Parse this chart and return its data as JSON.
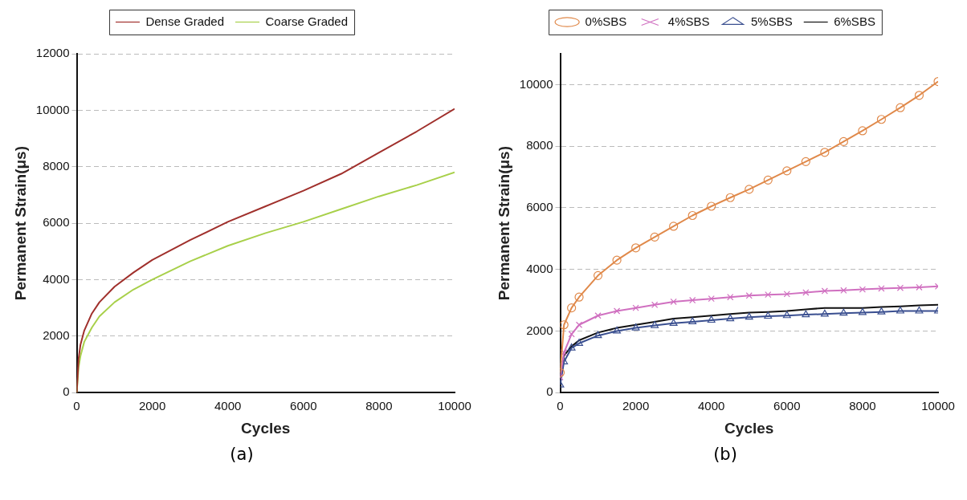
{
  "chart_data": [
    {
      "type": "line",
      "xlabel": "Cycles",
      "ylabel": "Permanent Strain(μs)",
      "xlim": [
        0,
        10000
      ],
      "xticks": [
        0,
        2000,
        4000,
        6000,
        8000,
        10000
      ],
      "ylim": [
        0,
        12000
      ],
      "yticks": [
        0,
        2000,
        4000,
        6000,
        8000,
        10000,
        12000
      ],
      "grid": "y",
      "legend": "top",
      "marker": "none",
      "line_style": "solid",
      "annotations": [
        "(a)"
      ],
      "x": [
        0,
        50,
        100,
        200,
        400,
        600,
        1000,
        1500,
        2000,
        3000,
        4000,
        5000,
        6000,
        7000,
        8000,
        9000,
        10000
      ],
      "series": [
        {
          "name": "Dense Graded",
          "color": "#a0302c",
          "values": [
            0,
            1200,
            1700,
            2200,
            2800,
            3200,
            3750,
            4250,
            4700,
            5400,
            6050,
            6600,
            7150,
            7750,
            8500,
            9250,
            10050
          ]
        },
        {
          "name": "Coarse Graded",
          "color": "#a8d04a",
          "values": [
            0,
            900,
            1300,
            1800,
            2300,
            2700,
            3200,
            3650,
            4000,
            4650,
            5200,
            5650,
            6050,
            6500,
            6950,
            7350,
            7800
          ]
        }
      ]
    },
    {
      "type": "line",
      "xlabel": "Cycles",
      "ylabel": "Permanent Strain(μs)",
      "xlim": [
        0,
        10000
      ],
      "xticks": [
        0,
        2000,
        4000,
        6000,
        8000,
        10000
      ],
      "ylim": [
        0,
        11000
      ],
      "yticks": [
        0,
        2000,
        4000,
        6000,
        8000,
        10000
      ],
      "grid": "y",
      "legend": "top",
      "line_style": "solid",
      "annotations": [
        "(b)"
      ],
      "x": [
        0,
        100,
        300,
        500,
        1000,
        1500,
        2000,
        2500,
        3000,
        3500,
        4000,
        4500,
        5000,
        5500,
        6000,
        6500,
        7000,
        7500,
        8000,
        8500,
        9000,
        9500,
        10000
      ],
      "series": [
        {
          "name": "0%SBS",
          "color": "#e0894a",
          "marker": "circle",
          "values": [
            650,
            2200,
            2750,
            3100,
            3800,
            4300,
            4700,
            5050,
            5400,
            5750,
            6050,
            6330,
            6600,
            6900,
            7200,
            7500,
            7800,
            8150,
            8500,
            8870,
            9250,
            9650,
            10100
          ]
        },
        {
          "name": "4%SBS",
          "color": "#d070c0",
          "marker": "cross",
          "values": [
            500,
            1300,
            1900,
            2200,
            2500,
            2650,
            2750,
            2850,
            2950,
            3000,
            3050,
            3100,
            3150,
            3180,
            3200,
            3250,
            3300,
            3320,
            3350,
            3380,
            3400,
            3420,
            3450
          ]
        },
        {
          "name": "5%SBS",
          "color": "#3a4f90",
          "marker": "triangle",
          "values": [
            250,
            1000,
            1450,
            1600,
            1850,
            2000,
            2100,
            2180,
            2250,
            2300,
            2350,
            2400,
            2450,
            2480,
            2500,
            2530,
            2550,
            2580,
            2600,
            2620,
            2650,
            2650,
            2650
          ]
        },
        {
          "name": "6%SBS",
          "color": "#111111",
          "marker": "none",
          "values": [
            400,
            1200,
            1500,
            1700,
            1950,
            2100,
            2200,
            2300,
            2400,
            2450,
            2500,
            2550,
            2600,
            2620,
            2650,
            2700,
            2750,
            2750,
            2750,
            2780,
            2800,
            2830,
            2850
          ]
        }
      ]
    }
  ]
}
